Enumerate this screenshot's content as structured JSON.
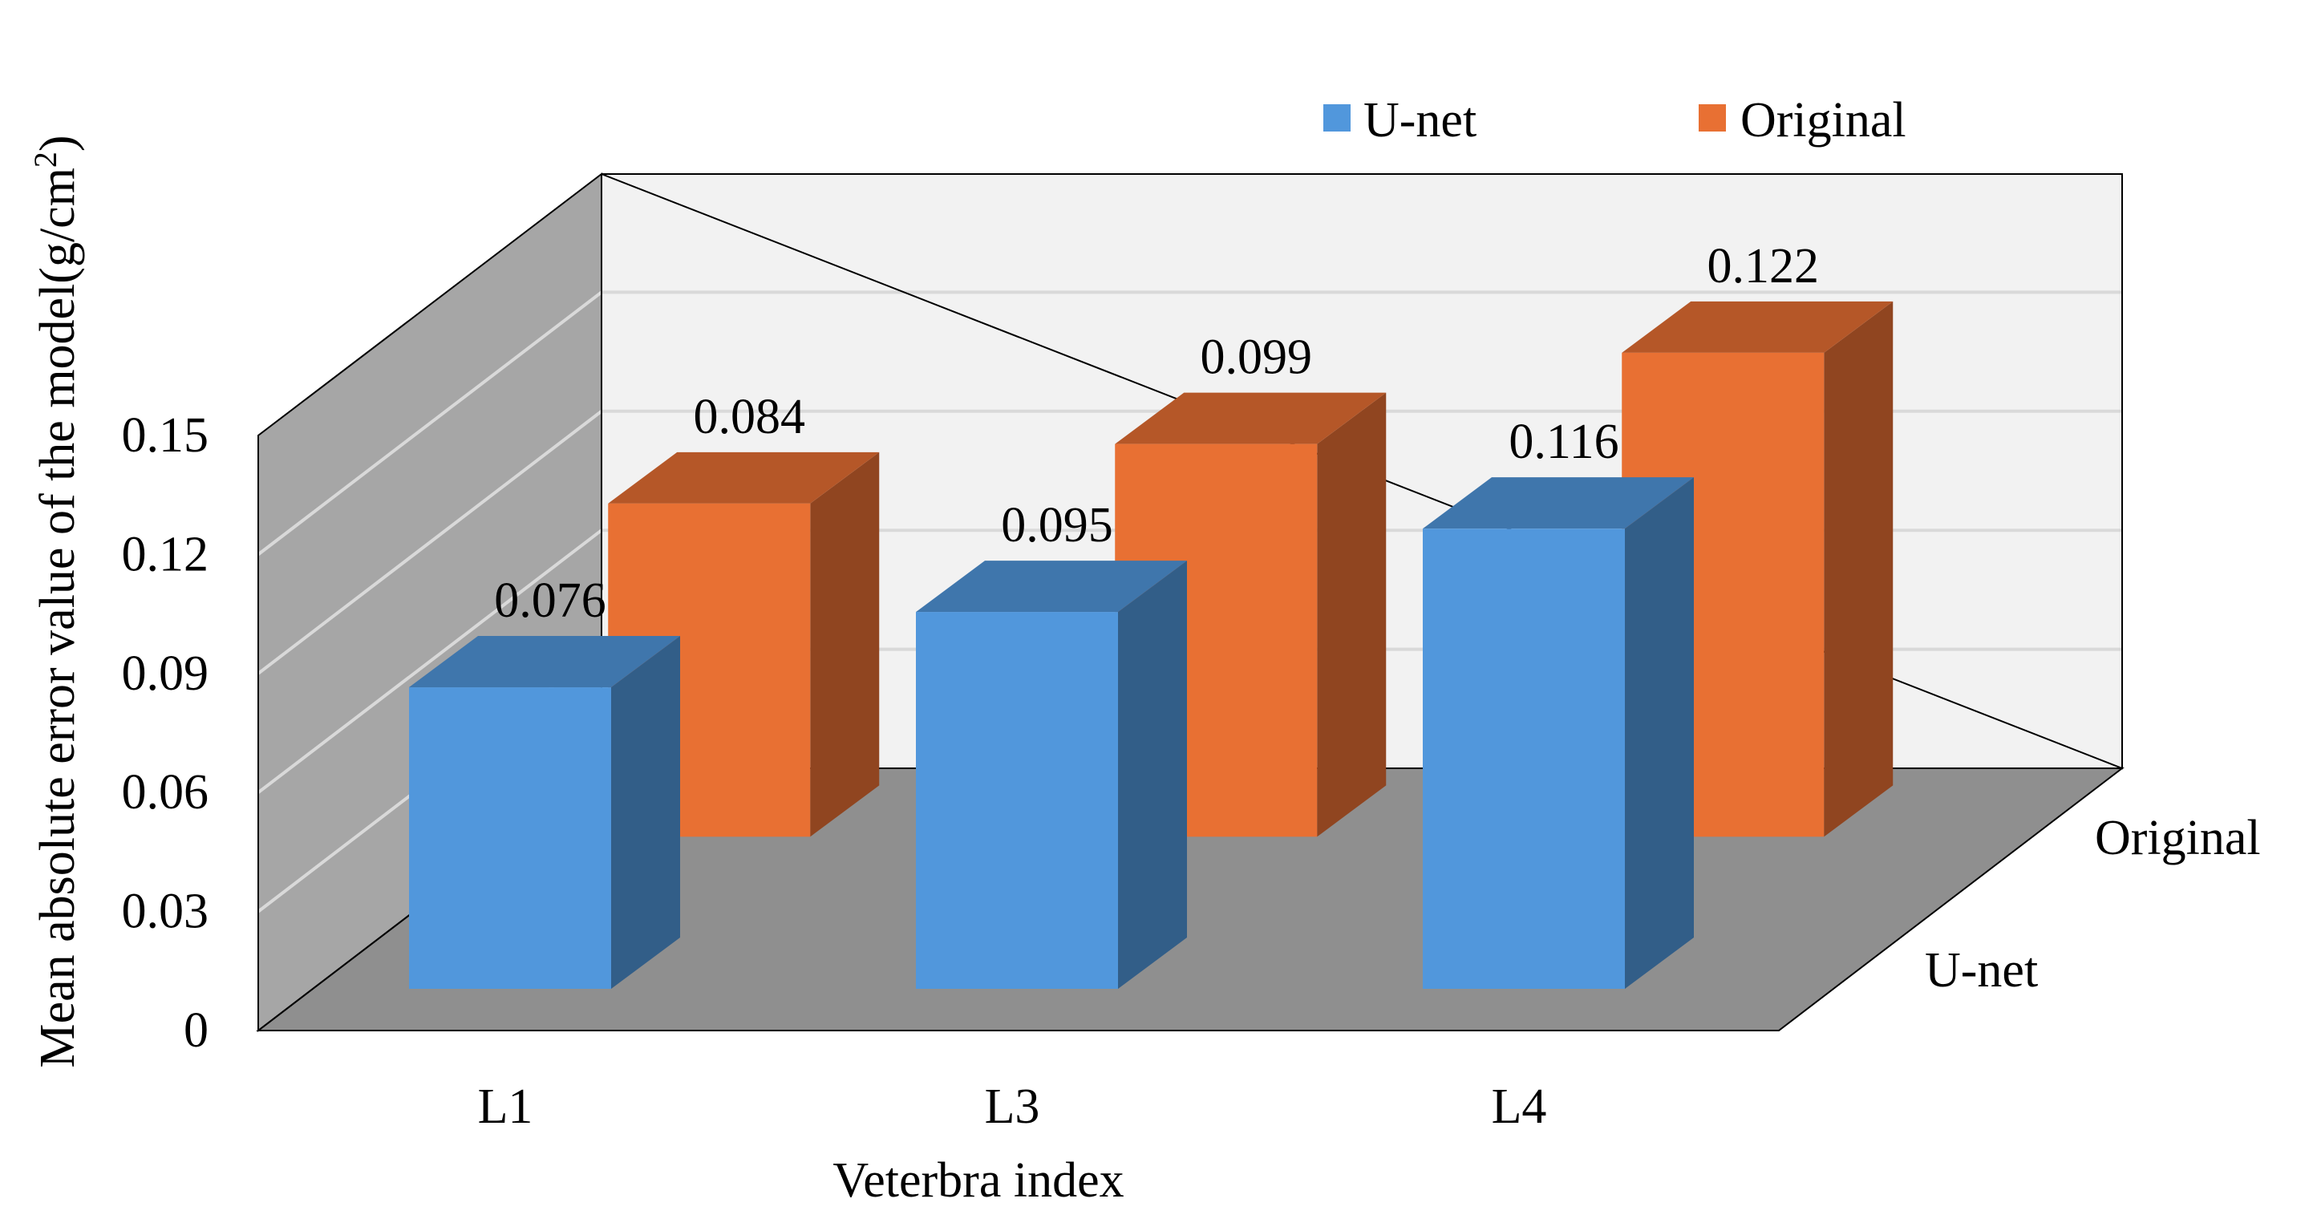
{
  "chart_data": {
    "type": "bar",
    "subtype": "3d-clustered-column",
    "title": "",
    "xlabel": "Veterbra index",
    "ylabel": "Mean absolute error  value of the model(g/cm²)",
    "ylabel_parts": {
      "main": "Mean absolute error  value of the model(g/cm",
      "superscript": "2",
      "close": ")"
    },
    "categories": [
      "L1",
      "L3",
      "L4"
    ],
    "depth_labels": [
      "U-net",
      "Original"
    ],
    "yticks": [
      "0",
      "0.03",
      "0.06",
      "0.09",
      "0.12",
      "0.15"
    ],
    "ylim": [
      0,
      0.15
    ],
    "grid": true,
    "legend_position": "top-right",
    "series": [
      {
        "name": "U-net",
        "values": [
          0.076,
          0.095,
          0.116
        ],
        "labels": [
          "0.076",
          "0.095",
          "0.116"
        ],
        "color": "#5197DC"
      },
      {
        "name": "Original",
        "values": [
          0.084,
          0.099,
          0.122
        ],
        "labels": [
          "0.084",
          "0.099",
          "0.122"
        ],
        "color": "#E87033"
      }
    ]
  },
  "colors": {
    "back_wall": "#F2F2F2",
    "side_wall": "#A6A6A6",
    "floor": "#8F8F8F",
    "gridline": "#D9D9D9",
    "edge": "#000000"
  }
}
